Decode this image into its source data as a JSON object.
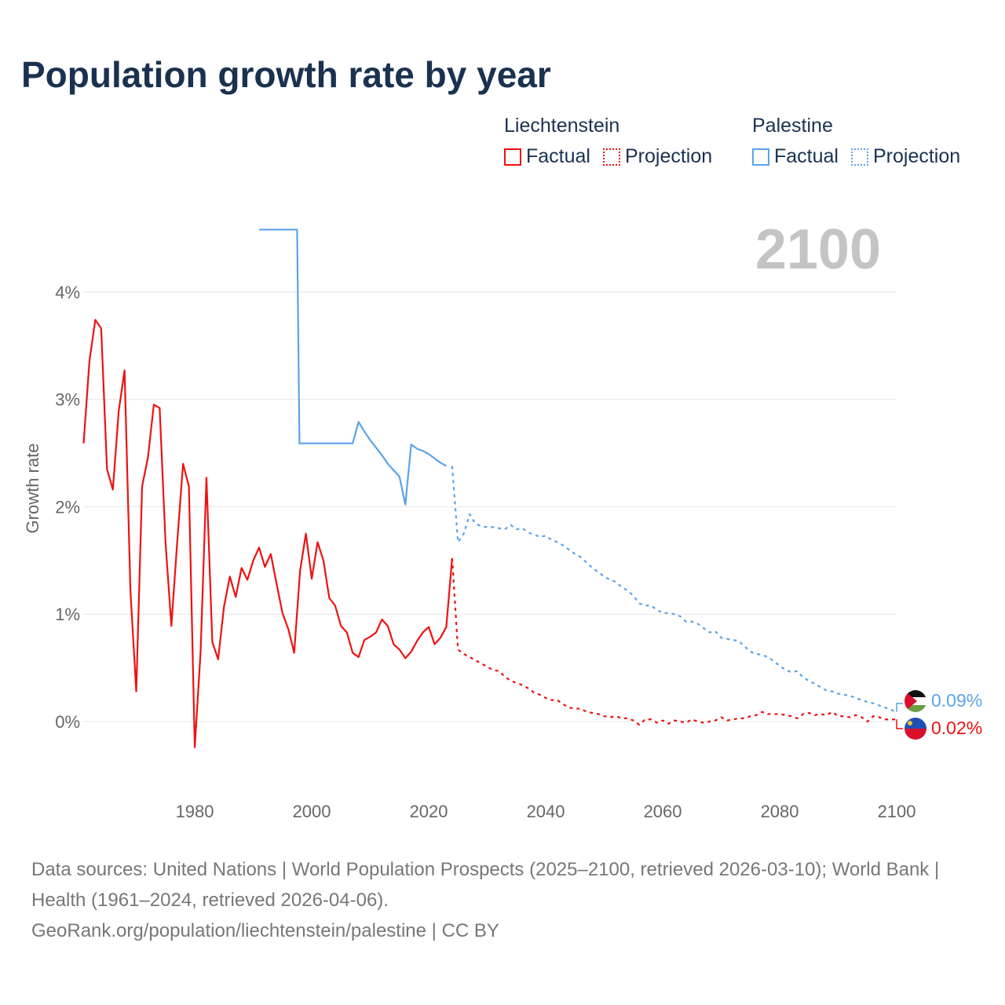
{
  "chart_data": {
    "type": "line",
    "title": "Population growth rate by year",
    "ylabel": "Growth rate",
    "xlabel": "",
    "xlim": [
      1961,
      2100
    ],
    "ylim": [
      -0.5,
      4.8
    ],
    "x_ticks": [
      1980,
      2000,
      2020,
      2040,
      2060,
      2080,
      2100
    ],
    "x_tick_labels": [
      "1980",
      "2000",
      "2020",
      "2040",
      "2060",
      "2080",
      "2100"
    ],
    "y_ticks": [
      0,
      1,
      2,
      3,
      4
    ],
    "y_tick_labels": [
      "0%",
      "1%",
      "2%",
      "3%",
      "4%"
    ],
    "grid": true,
    "year_watermark": "2100",
    "legend": {
      "placement": "top-right",
      "groups": [
        {
          "name": "Liechtenstein",
          "factual": "Factual",
          "projection": "Projection"
        },
        {
          "name": "Palestine",
          "factual": "Factual",
          "projection": "Projection"
        }
      ]
    },
    "colors": {
      "liechtenstein": "#ee1111",
      "palestine": "#5ba3e8"
    },
    "series": [
      {
        "name": "Liechtenstein Factual",
        "country": "Liechtenstein",
        "style": "solid",
        "x_start": 1961,
        "values": [
          2.59,
          3.36,
          3.74,
          3.66,
          2.35,
          2.16,
          2.89,
          3.27,
          1.22,
          0.28,
          2.19,
          2.46,
          2.95,
          2.92,
          1.67,
          0.89,
          1.67,
          2.4,
          2.19,
          -0.24,
          0.65,
          2.27,
          0.74,
          0.58,
          1.07,
          1.35,
          1.16,
          1.43,
          1.32,
          1.5,
          1.62,
          1.44,
          1.56,
          1.28,
          1.01,
          0.86,
          0.64,
          1.4,
          1.75,
          1.33,
          1.67,
          1.5,
          1.15,
          1.08,
          0.89,
          0.83,
          0.64,
          0.6,
          0.76,
          0.79,
          0.83,
          0.95,
          0.89,
          0.72,
          0.67,
          0.59,
          0.65,
          0.75,
          0.83,
          0.88,
          0.72,
          0.78,
          0.88,
          1.52
        ]
      },
      {
        "name": "Liechtenstein Projection",
        "country": "Liechtenstein",
        "style": "dotted",
        "x_start": 2024,
        "values": [
          1.52,
          0.67,
          0.63,
          0.6,
          0.57,
          0.54,
          0.51,
          0.48,
          0.47,
          0.42,
          0.38,
          0.36,
          0.34,
          0.31,
          0.27,
          0.25,
          0.22,
          0.2,
          0.2,
          0.16,
          0.13,
          0.12,
          0.12,
          0.09,
          0.08,
          0.07,
          0.05,
          0.04,
          0.05,
          0.03,
          0.03,
          0.01,
          -0.03,
          0.02,
          0.02,
          -0.01,
          0.01,
          -0.02,
          0.01,
          0.0,
          -0.01,
          0.02,
          0.0,
          -0.01,
          0.0,
          0.01,
          0.04,
          0.01,
          0.02,
          0.03,
          0.03,
          0.05,
          0.06,
          0.09,
          0.07,
          0.07,
          0.07,
          0.06,
          0.05,
          0.03,
          0.07,
          0.08,
          0.06,
          0.07,
          0.06,
          0.09,
          0.05,
          0.05,
          0.04,
          0.06,
          0.04,
          0.0,
          0.05,
          0.04,
          0.02,
          0.02,
          0.02
        ]
      },
      {
        "name": "Palestine Factual",
        "country": "Palestine",
        "style": "solid",
        "x_start": 1991,
        "values": [
          4.58,
          4.58,
          4.58,
          4.58,
          4.58,
          4.58,
          4.58,
          2.59,
          2.59,
          2.59,
          2.59,
          2.59,
          2.59,
          2.59,
          2.59,
          2.59,
          2.59,
          2.79,
          2.7,
          2.62,
          2.55,
          2.48,
          2.4,
          2.34,
          2.28,
          2.02,
          2.58,
          2.54,
          2.52,
          2.49,
          2.45,
          2.41,
          2.38
        ]
      },
      {
        "name": "Palestine Projection",
        "country": "Palestine",
        "style": "dotted",
        "x_start": 2024,
        "values": [
          2.38,
          1.67,
          1.75,
          1.93,
          1.84,
          1.82,
          1.81,
          1.81,
          1.8,
          1.79,
          1.83,
          1.79,
          1.8,
          1.76,
          1.74,
          1.72,
          1.73,
          1.69,
          1.67,
          1.64,
          1.6,
          1.56,
          1.53,
          1.48,
          1.43,
          1.39,
          1.35,
          1.32,
          1.3,
          1.25,
          1.22,
          1.17,
          1.1,
          1.08,
          1.08,
          1.04,
          1.01,
          1.01,
          1.0,
          0.98,
          0.93,
          0.93,
          0.91,
          0.87,
          0.83,
          0.84,
          0.78,
          0.77,
          0.76,
          0.75,
          0.7,
          0.65,
          0.63,
          0.62,
          0.6,
          0.56,
          0.52,
          0.48,
          0.46,
          0.47,
          0.41,
          0.38,
          0.35,
          0.32,
          0.29,
          0.28,
          0.26,
          0.25,
          0.24,
          0.22,
          0.2,
          0.18,
          0.17,
          0.15,
          0.13,
          0.11,
          0.09
        ]
      }
    ],
    "end_labels": [
      {
        "country": "Palestine",
        "text": "0.09%"
      },
      {
        "country": "Liechtenstein",
        "text": "0.02%"
      }
    ]
  },
  "footer": {
    "sources": "Data sources: United Nations | World Population Prospects (2025–2100, retrieved 2026-03-10); World Bank | Health (1961–2024, retrieved 2026-04-06).",
    "credit": "GeoRank.org/population/liechtenstein/palestine | CC BY"
  }
}
